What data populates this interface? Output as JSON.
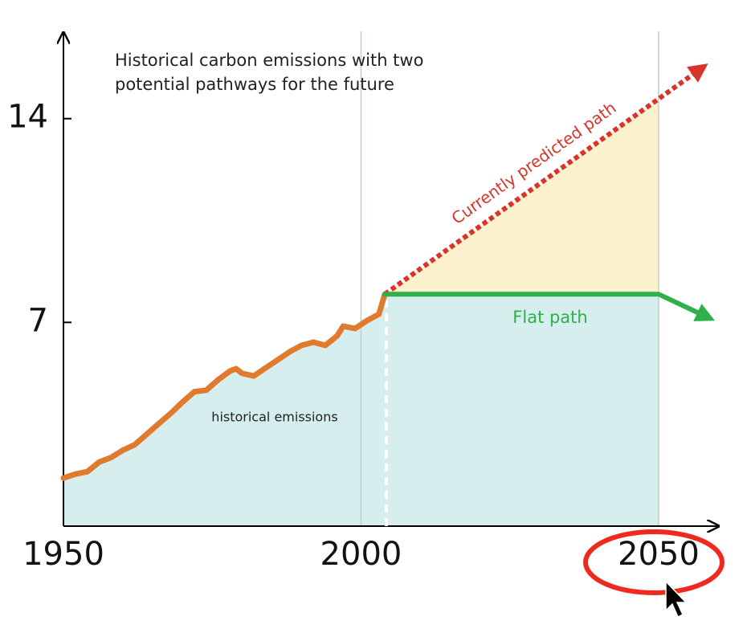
{
  "chart_data": {
    "type": "line",
    "title": "Historical carbon emissions with two potential pathways for the future",
    "xlim": [
      1950,
      2060
    ],
    "ylim": [
      0,
      17
    ],
    "xticks": [
      1950,
      2000,
      2050
    ],
    "yticks": [
      7,
      14
    ],
    "series": [
      {
        "name": "historical emissions",
        "color": "#e07a2e",
        "x": [
          1950,
          1952,
          1954,
          1956,
          1958,
          1960,
          1962,
          1964,
          1966,
          1968,
          1970,
          1972,
          1974,
          1976,
          1978,
          1979,
          1980,
          1982,
          1984,
          1986,
          1988,
          1990,
          1992,
          1994,
          1996,
          1997,
          1999,
          2001,
          2003,
          2004
        ],
        "values": [
          1.65,
          1.79,
          1.87,
          2.2,
          2.36,
          2.61,
          2.8,
          3.16,
          3.52,
          3.87,
          4.26,
          4.62,
          4.67,
          5.03,
          5.33,
          5.41,
          5.25,
          5.16,
          5.44,
          5.71,
          5.99,
          6.21,
          6.32,
          6.21,
          6.54,
          6.87,
          6.79,
          7.06,
          7.28,
          7.97
        ]
      },
      {
        "name": "Currently predicted path",
        "color": "#d9332a",
        "x": [
          2004,
          2057
        ],
        "values": [
          7.97,
          15.7
        ]
      },
      {
        "name": "Flat path",
        "color": "#2eb04a",
        "x": [
          2004,
          2050,
          2058
        ],
        "values": [
          7.97,
          7.97,
          7.2
        ]
      }
    ]
  }
}
